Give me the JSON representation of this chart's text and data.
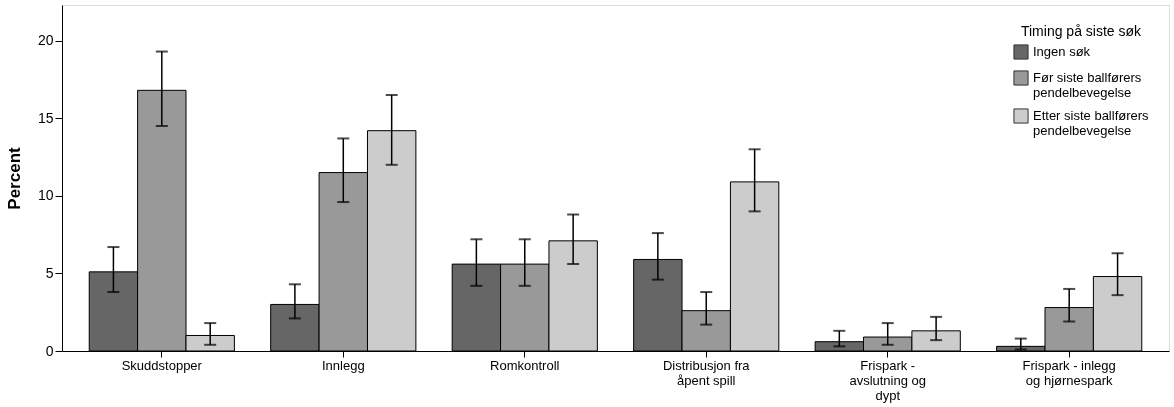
{
  "chart_data": {
    "type": "bar",
    "ylabel": "Percent",
    "legend_title": "Timing på siste søk",
    "categories": [
      "Skuddstopper",
      "Innlegg",
      "Romkontroll",
      "Distribusjon fra åpent spill",
      "Frispark - avslutning og dypt",
      "Frispark - inlegg og hjørnespark"
    ],
    "series": [
      {
        "name": "Ingen søk",
        "color": "#666666",
        "values": [
          5.1,
          3.0,
          5.6,
          5.9,
          0.6,
          0.3
        ],
        "errors": [
          [
            3.8,
            6.7
          ],
          [
            2.1,
            4.3
          ],
          [
            4.2,
            7.2
          ],
          [
            4.6,
            7.6
          ],
          [
            0.3,
            1.3
          ],
          [
            0.1,
            0.8
          ]
        ]
      },
      {
        "name": "Før siste ballførers pendelbevegelse",
        "color": "#999999",
        "values": [
          16.8,
          11.5,
          5.6,
          2.6,
          0.9,
          2.8
        ],
        "errors": [
          [
            14.5,
            19.3
          ],
          [
            9.6,
            13.7
          ],
          [
            4.2,
            7.2
          ],
          [
            1.7,
            3.8
          ],
          [
            0.4,
            1.8
          ],
          [
            1.9,
            4.0
          ]
        ]
      },
      {
        "name": "Etter siste ballførers pendelbevegelse",
        "color": "#cccccc",
        "values": [
          1.0,
          14.2,
          7.1,
          10.9,
          1.3,
          4.8
        ],
        "errors": [
          [
            0.4,
            1.8
          ],
          [
            12.0,
            16.5
          ],
          [
            5.6,
            8.8
          ],
          [
            9.0,
            13.0
          ],
          [
            0.7,
            2.2
          ],
          [
            3.6,
            6.3
          ]
        ]
      }
    ],
    "ylim": [
      0,
      22.3
    ],
    "yticks": [
      0,
      5,
      10,
      15,
      20
    ],
    "grid": false,
    "legend": "top right"
  }
}
